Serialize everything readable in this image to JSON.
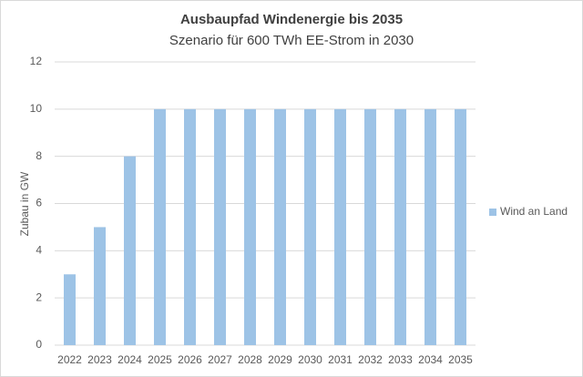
{
  "chart_data": {
    "type": "bar",
    "title": "Ausbaupfad Windenergie bis 2035",
    "subtitle": "Szenario für 600 TWh EE-Strom in 2030",
    "y_label": "Zubau in GW",
    "categories": [
      "2022",
      "2023",
      "2024",
      "2025",
      "2026",
      "2027",
      "2028",
      "2029",
      "2030",
      "2031",
      "2032",
      "2033",
      "2034",
      "2035"
    ],
    "series": [
      {
        "name": "Wind an Land",
        "color": "#9dc3e6",
        "values": [
          3,
          5,
          8,
          10,
          10,
          10,
          10,
          10,
          10,
          10,
          10,
          10,
          10,
          10
        ]
      }
    ],
    "ylim": [
      0,
      12
    ],
    "yticks": [
      0,
      2,
      4,
      6,
      8,
      10,
      12
    ],
    "grid": true,
    "legend": "right"
  }
}
